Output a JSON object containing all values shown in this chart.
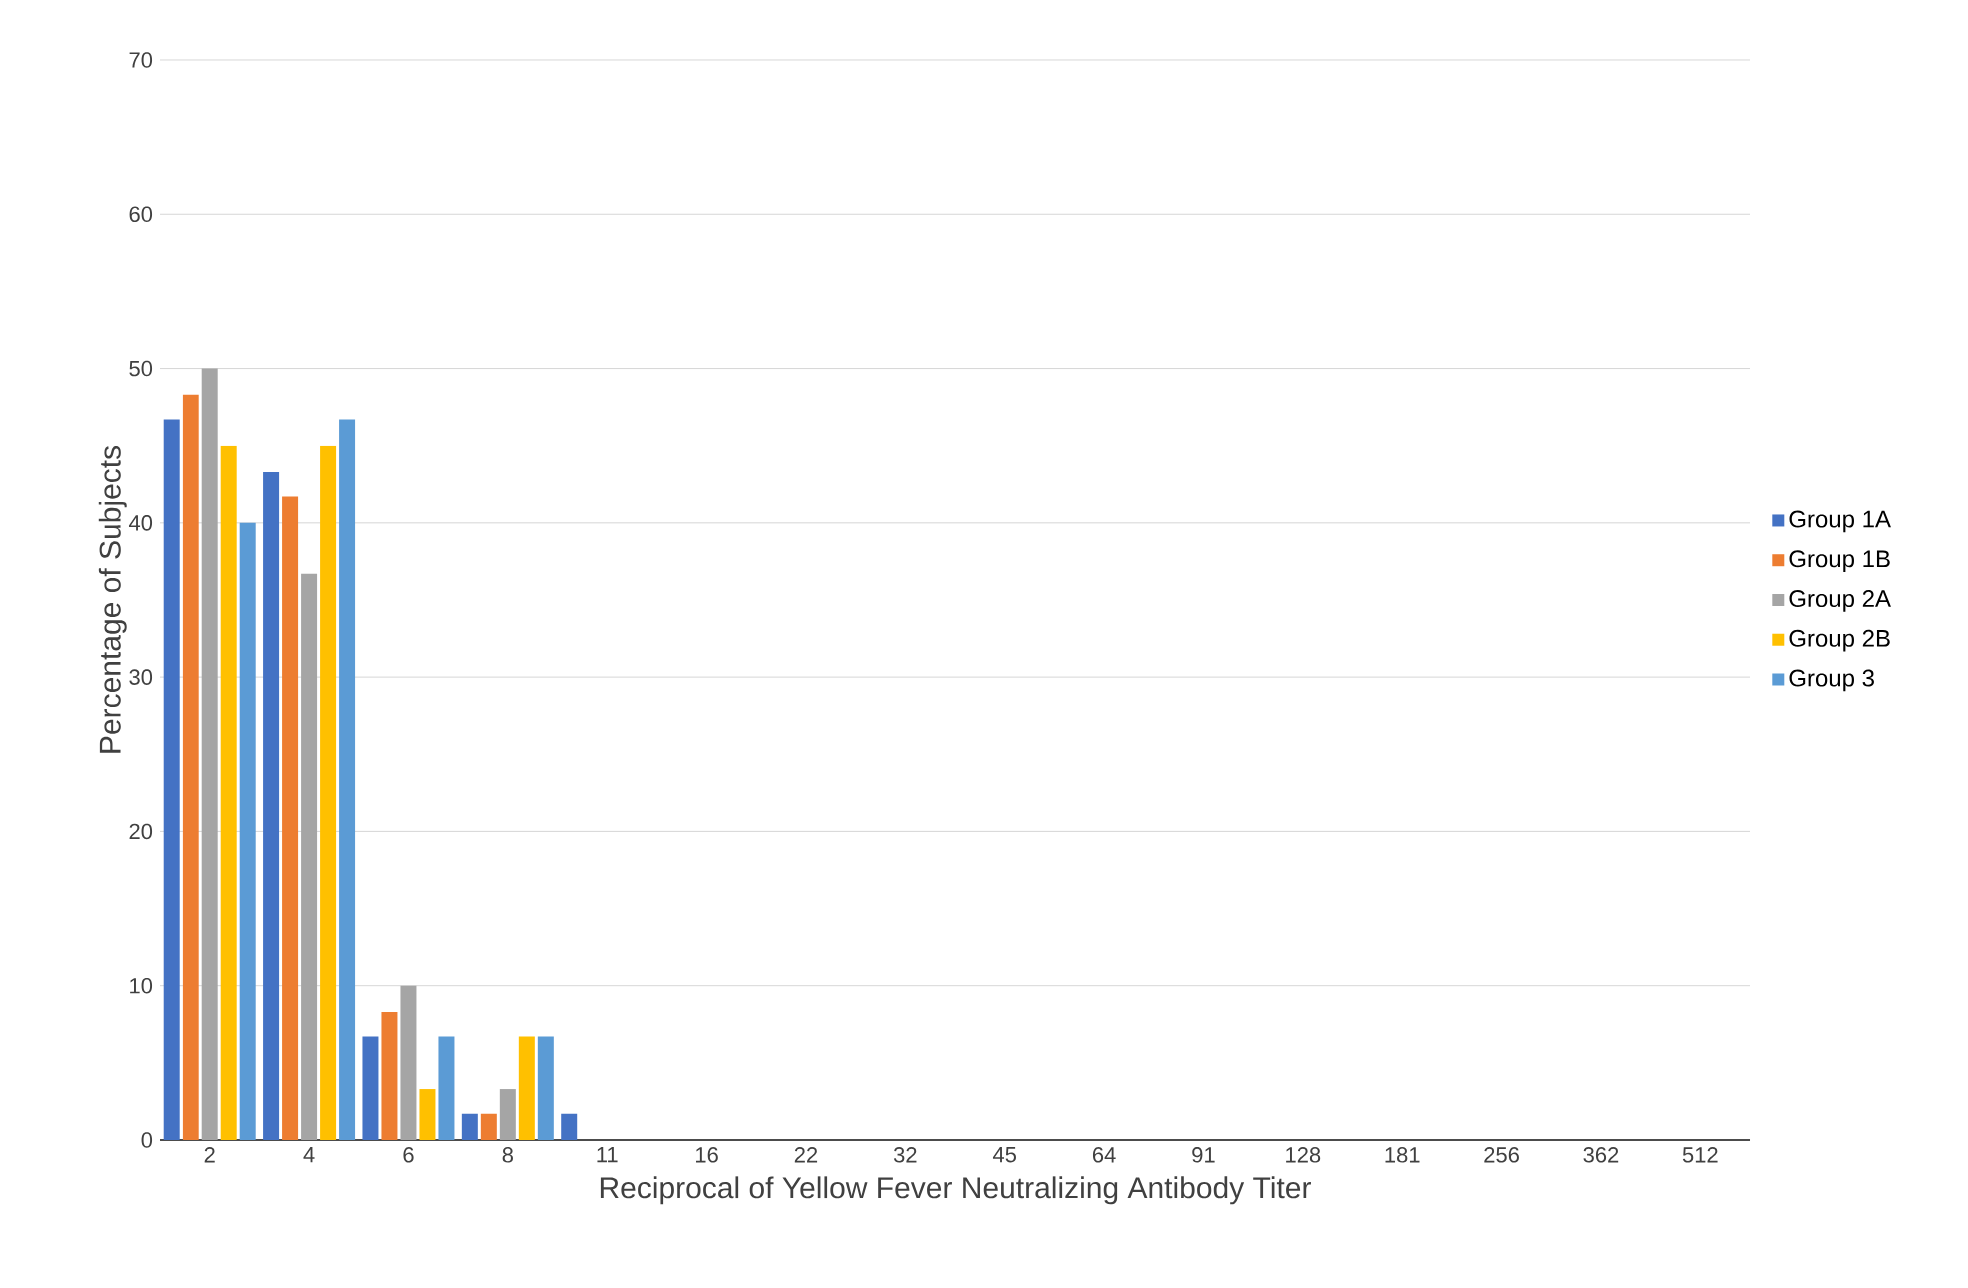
{
  "chart_data": {
    "type": "bar",
    "xlabel": "Reciprocal of Yellow Fever Neutralizing Antibody Titer",
    "ylabel": "Percentage of Subjects",
    "categories": [
      "2",
      "4",
      "6",
      "8",
      "11",
      "16",
      "22",
      "32",
      "45",
      "64",
      "91",
      "128",
      "181",
      "256",
      "362",
      "512"
    ],
    "series": [
      {
        "name": "Group 1A",
        "color": "#4472c4",
        "values": [
          46.7,
          43.3,
          6.7,
          1.7,
          1.7,
          0,
          0,
          0,
          0,
          0,
          0,
          0,
          0,
          0,
          0,
          0
        ]
      },
      {
        "name": "Group 1B",
        "color": "#ed7d31",
        "values": [
          48.3,
          41.7,
          8.3,
          1.7,
          0,
          0,
          0,
          0,
          0,
          0,
          0,
          0,
          0,
          0,
          0,
          0
        ]
      },
      {
        "name": "Group 2A",
        "color": "#a5a5a5",
        "values": [
          50,
          36.7,
          10,
          3.3,
          0,
          0,
          0,
          0,
          0,
          0,
          0,
          0,
          0,
          0,
          0,
          0
        ]
      },
      {
        "name": "Group 2B",
        "color": "#ffc000",
        "values": [
          45,
          45,
          3.3,
          6.7,
          0,
          0,
          0,
          0,
          0,
          0,
          0,
          0,
          0,
          0,
          0,
          0
        ]
      },
      {
        "name": "Group 3",
        "color": "#5b9bd5",
        "values": [
          40,
          46.7,
          6.7,
          6.7,
          0,
          0,
          0,
          0,
          0,
          0,
          0,
          0,
          0,
          0,
          0,
          0
        ]
      }
    ],
    "ylim": [
      0,
      70
    ],
    "yticks": [
      0,
      10,
      20,
      30,
      40,
      50,
      60,
      70
    ],
    "grid": "y",
    "legend": "right"
  }
}
